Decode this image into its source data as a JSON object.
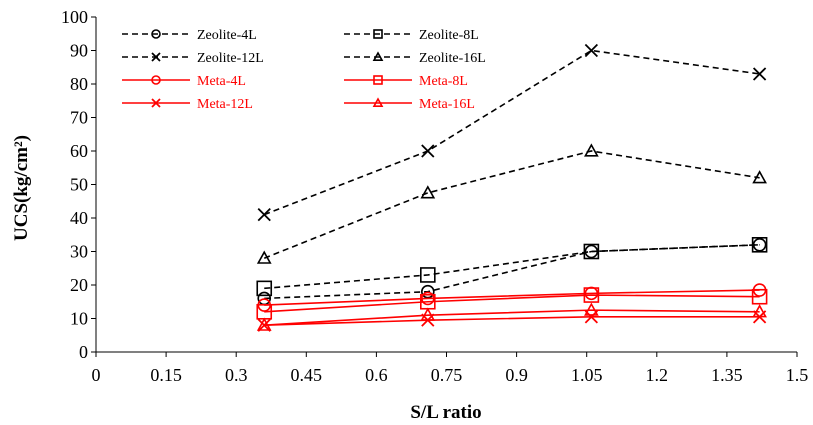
{
  "chart_data": {
    "type": "line",
    "title": "",
    "xlabel": "S/L ratio",
    "ylabel": "UCS(kg/cm²)",
    "xlim": [
      0,
      1.5
    ],
    "ylim": [
      0,
      100
    ],
    "xticks": [
      "0",
      "0.15",
      "0.3",
      "0.45",
      "0.6",
      "0.75",
      "0.9",
      "1.05",
      "1.2",
      "1.35",
      "1.5"
    ],
    "yticks": [
      "0",
      "10",
      "20",
      "30",
      "40",
      "50",
      "60",
      "70",
      "80",
      "90",
      "100"
    ],
    "grid": false,
    "legend_position": "top",
    "x": [
      0.36,
      0.71,
      1.06,
      1.42
    ],
    "series": [
      {
        "name": "Zeolite-4L",
        "values": [
          16,
          18,
          30,
          32
        ],
        "color": "#000000",
        "dash": "dashed",
        "marker": "circle"
      },
      {
        "name": "Zeolite-8L",
        "values": [
          19,
          23,
          30,
          32
        ],
        "color": "#000000",
        "dash": "dashed",
        "marker": "square"
      },
      {
        "name": "Zeolite-12L",
        "values": [
          41,
          60,
          90,
          83
        ],
        "color": "#000000",
        "dash": "dashed",
        "marker": "x"
      },
      {
        "name": "Zeolite-16L",
        "values": [
          28,
          47.5,
          60,
          52
        ],
        "color": "#000000",
        "dash": "dashed",
        "marker": "triangle"
      },
      {
        "name": "Meta-4L",
        "values": [
          14,
          16,
          17.5,
          18.5
        ],
        "color": "#ff0000",
        "dash": "solid",
        "marker": "circle"
      },
      {
        "name": "Meta-8L",
        "values": [
          12,
          15,
          17,
          16.5
        ],
        "color": "#ff0000",
        "dash": "solid",
        "marker": "square"
      },
      {
        "name": "Meta-12L",
        "values": [
          8,
          9.5,
          10.5,
          10.5
        ],
        "color": "#ff0000",
        "dash": "solid",
        "marker": "x"
      },
      {
        "name": "Meta-16L",
        "values": [
          8,
          11,
          12.5,
          12
        ],
        "color": "#ff0000",
        "dash": "solid",
        "marker": "triangle"
      }
    ]
  }
}
